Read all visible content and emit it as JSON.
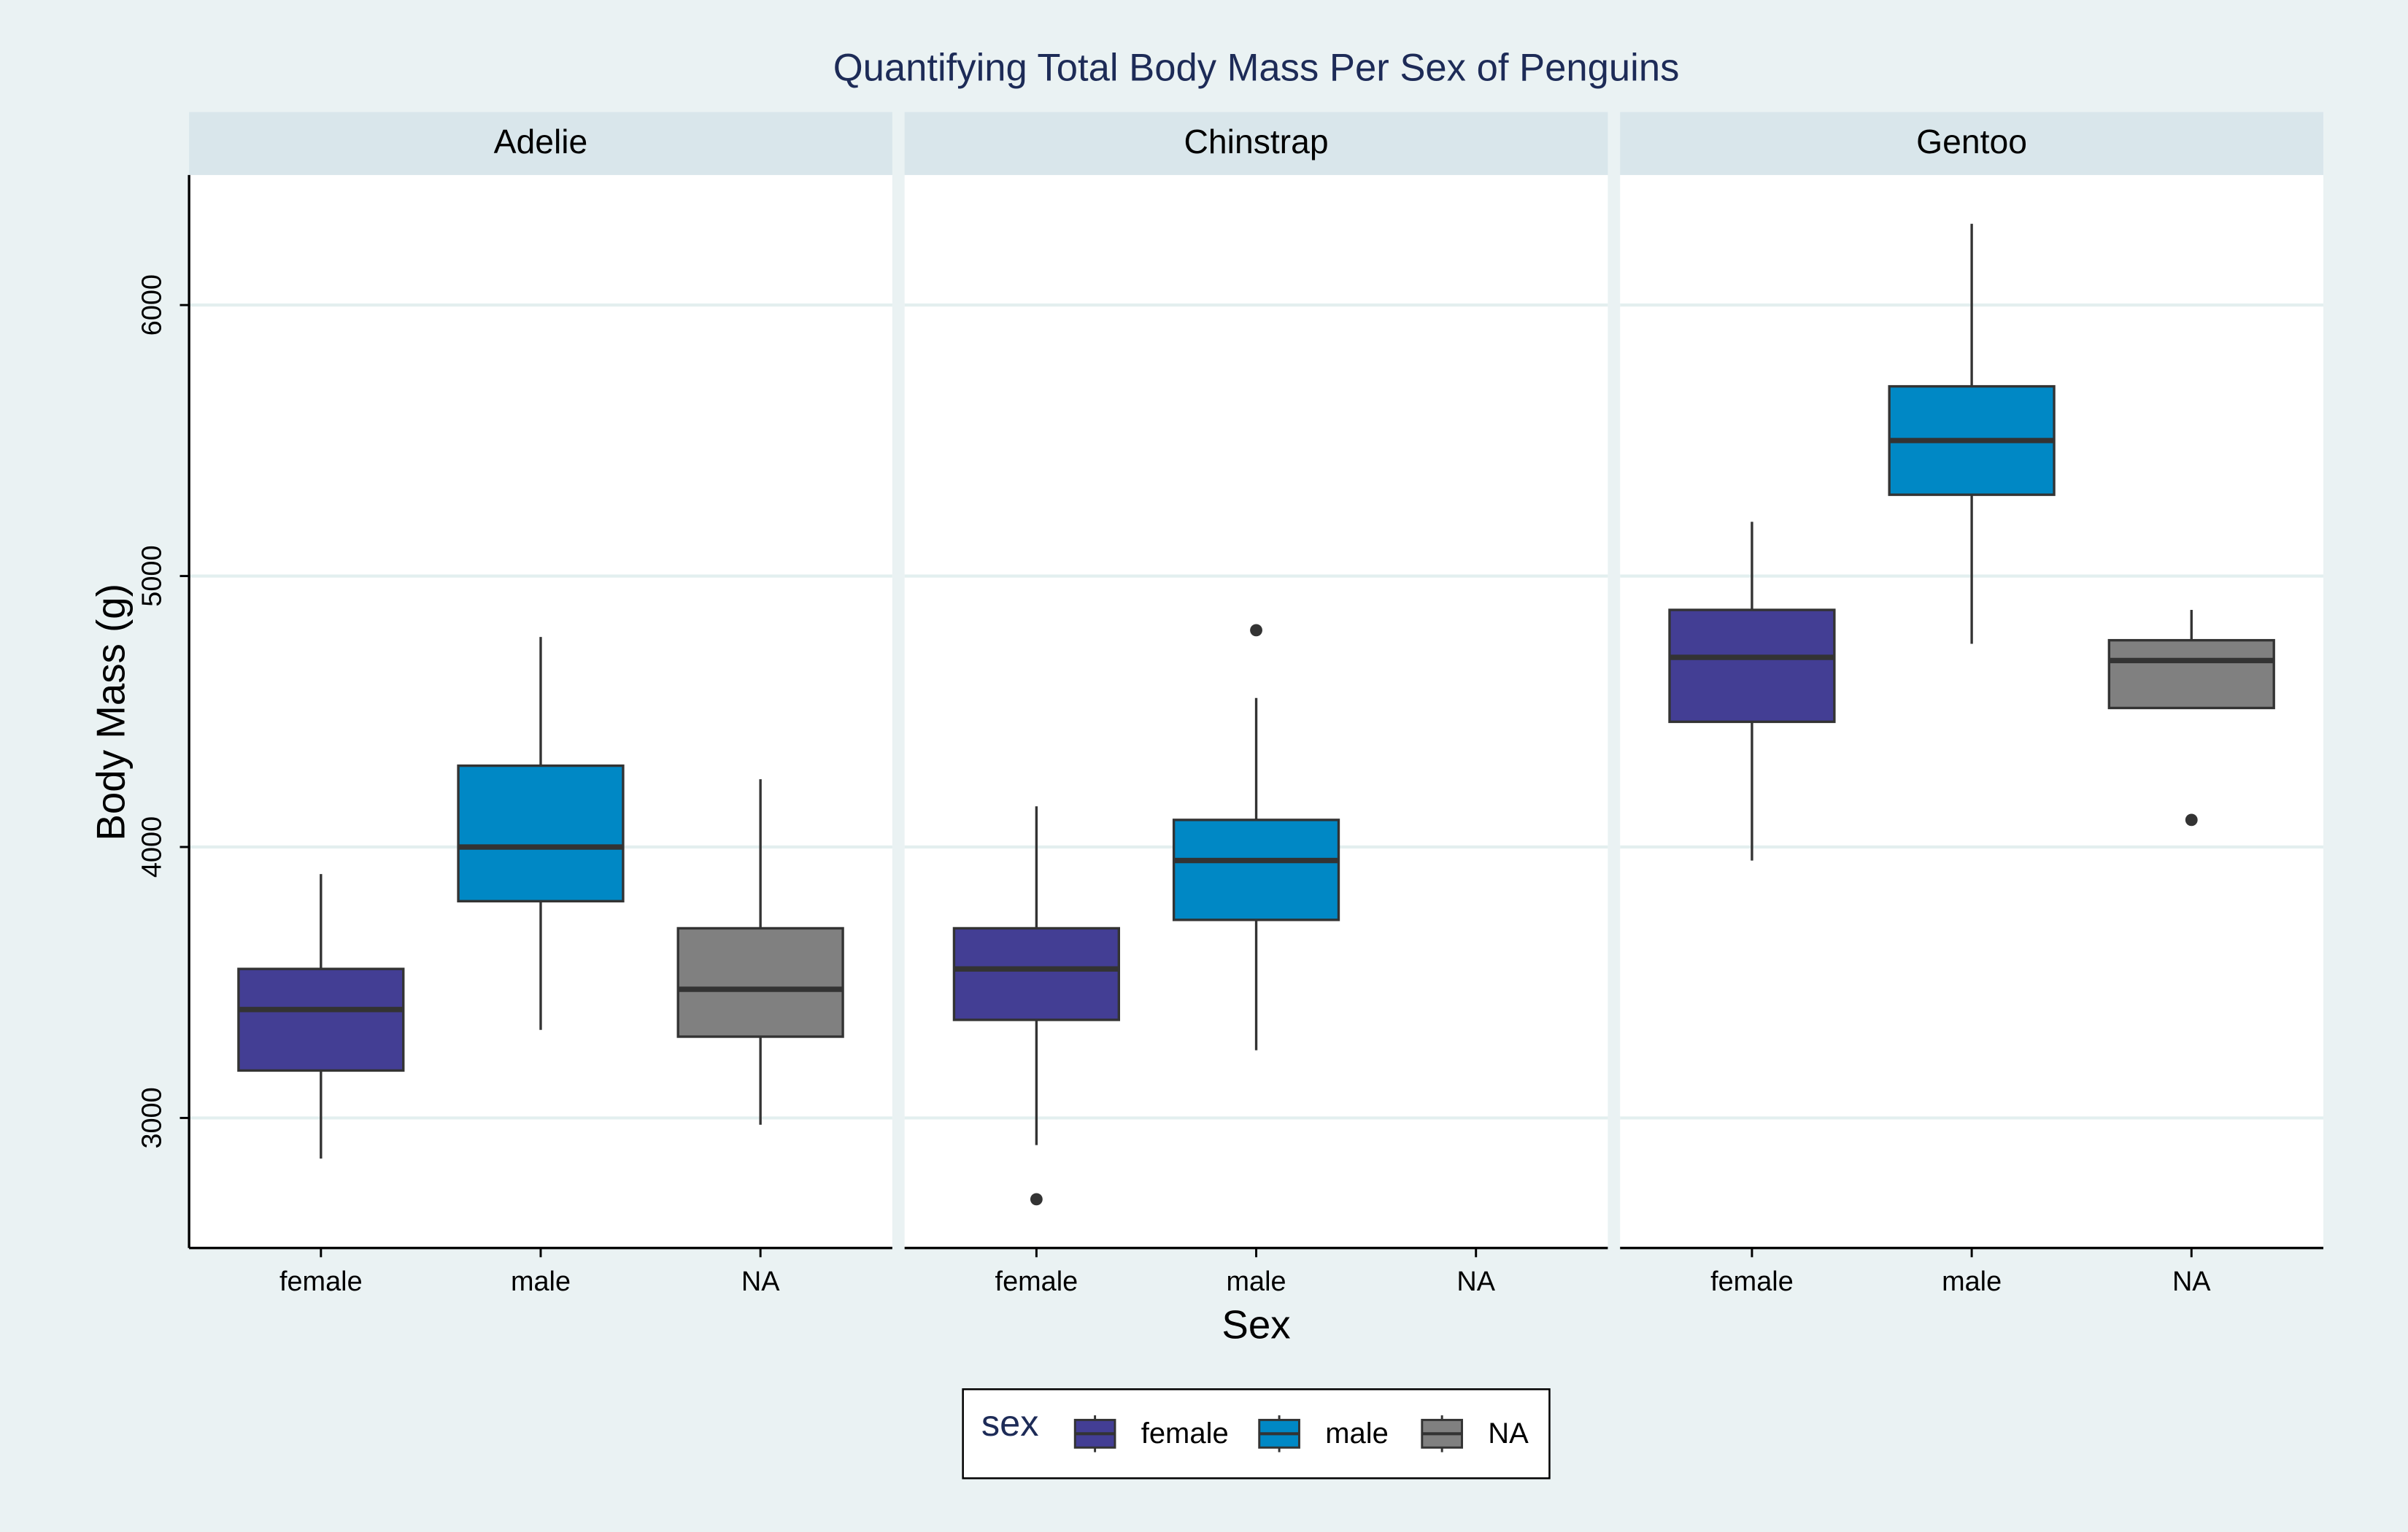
{
  "chart_data": {
    "type": "box",
    "title": "Quantifying Total Body Mass Per Sex of Penguins",
    "xlabel": "Sex",
    "ylabel": "Body Mass (g)",
    "ylim": [
      2520,
      6480
    ],
    "yticks": [
      3000,
      4000,
      5000,
      6000
    ],
    "grid": true,
    "categories": [
      "female",
      "male",
      "NA"
    ],
    "legend_title": "sex",
    "legend_position": "bottom",
    "series": [
      {
        "name": "female",
        "color": "#433e94"
      },
      {
        "name": "male",
        "color": "#0088c5"
      },
      {
        "name": "NA",
        "color": "#808080"
      }
    ],
    "facets": [
      {
        "name": "Adelie",
        "boxes": [
          {
            "min": 2850,
            "q1": 3175,
            "median": 3400,
            "q3": 3550,
            "max": 3900
          },
          {
            "min": 3325,
            "q1": 3800,
            "median": 4000,
            "q3": 4300,
            "max": 4775
          },
          {
            "min": 2975,
            "q1": 3300,
            "median": 3475,
            "q3": 3700,
            "max": 4250
          }
        ]
      },
      {
        "name": "Chinstrap",
        "boxes": [
          {
            "min": 2900,
            "q1": 3362,
            "median": 3550,
            "q3": 3700,
            "max": 4150,
            "outliers": [
              2700
            ]
          },
          {
            "min": 3250,
            "q1": 3731,
            "median": 3950,
            "q3": 4100,
            "max": 4550,
            "outliers": [
              4800
            ]
          },
          null
        ]
      },
      {
        "name": "Gentoo",
        "boxes": [
          {
            "min": 3950,
            "q1": 4462,
            "median": 4700,
            "q3": 4875,
            "max": 5200
          },
          {
            "min": 4750,
            "q1": 5300,
            "median": 5500,
            "q3": 5700,
            "max": 6300
          },
          {
            "min": 4513,
            "q1": 4513,
            "median": 4688,
            "q3": 4763,
            "max": 4875,
            "outliers": [
              4100
            ]
          }
        ]
      }
    ]
  }
}
